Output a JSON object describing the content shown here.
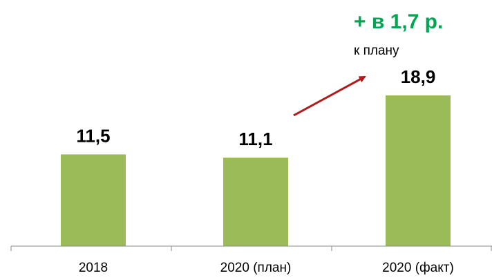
{
  "chart_data": {
    "type": "bar",
    "categories": [
      "2018",
      "2020 (план)",
      "2020 (факт)"
    ],
    "values": [
      11.5,
      11.1,
      18.9
    ],
    "value_labels": [
      "11,5",
      "11,1",
      "18,9"
    ],
    "title": "",
    "xlabel": "",
    "ylabel": "",
    "ylim": [
      0,
      30
    ],
    "grid": false,
    "legend": "none",
    "bar_color": "#9bbb59",
    "annotation": {
      "text": "+ в 1,7 р.",
      "subtext": "к плану",
      "color": "#00a651",
      "arrow_color": "#b01c1c",
      "arrow_from": "2020 (план)",
      "arrow_to": "2020 (факт)"
    }
  }
}
